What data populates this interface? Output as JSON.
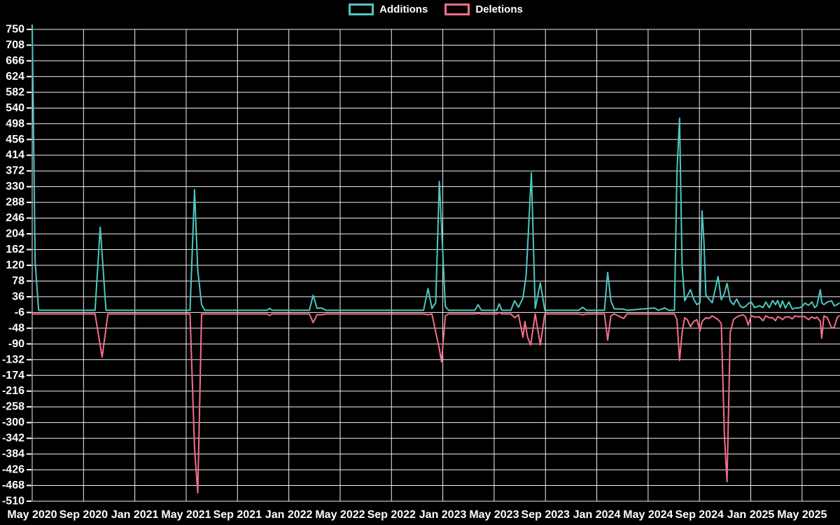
{
  "page": {
    "background": "#000000",
    "text_color": "#ffffff",
    "grid_color": "#f2f2f2"
  },
  "legend": {
    "items": [
      {
        "label": "Additions",
        "color": "#4DC7C0"
      },
      {
        "label": "Deletions",
        "color": "#F56E8C"
      }
    ]
  },
  "chart_data": {
    "type": "line",
    "title": "",
    "xlabel": "",
    "ylabel": "",
    "grid": true,
    "legend_position": "top-center",
    "x_axis": {
      "unit": "months since May 2020 (weekly data)",
      "range_months": [
        0,
        62.9
      ],
      "tick_step_months": 4,
      "tick_labels": [
        "May 2020",
        "Sep 2020",
        "Jan 2021",
        "May 2021",
        "Sep 2021",
        "Jan 2022",
        "May 2022",
        "Sep 2022",
        "Jan 2023",
        "May 2023",
        "Sep 2023",
        "Jan 2024",
        "May 2024",
        "Sep 2024",
        "Jan 2025",
        "May 2025"
      ]
    },
    "y_axis": {
      "range": [
        -510,
        750
      ],
      "ticks": [
        750,
        708,
        666,
        624,
        582,
        540,
        498,
        456,
        414,
        372,
        330,
        288,
        246,
        204,
        162,
        120,
        78,
        36,
        -6,
        -48,
        -90,
        -132,
        -174,
        -216,
        -258,
        -300,
        -342,
        -384,
        -426,
        -468,
        -510
      ]
    },
    "series": [
      {
        "name": "Additions",
        "color": "#4DC7C0",
        "line_width": 2,
        "points": [
          [
            0,
            762
          ],
          [
            0.23,
            130
          ],
          [
            0.5,
            0
          ],
          [
            4.9,
            0
          ],
          [
            5.3,
            222
          ],
          [
            5.75,
            0
          ],
          [
            12.3,
            0
          ],
          [
            12.65,
            322
          ],
          [
            12.9,
            107
          ],
          [
            13.2,
            15
          ],
          [
            13.45,
            0
          ],
          [
            18.3,
            0
          ],
          [
            18.5,
            5
          ],
          [
            18.7,
            0
          ],
          [
            21.6,
            0
          ],
          [
            21.9,
            40
          ],
          [
            22.2,
            5
          ],
          [
            22.55,
            6
          ],
          [
            22.9,
            0
          ],
          [
            30.5,
            0
          ],
          [
            30.85,
            58
          ],
          [
            31.15,
            5
          ],
          [
            31.45,
            20
          ],
          [
            31.73,
            344
          ],
          [
            31.9,
            227
          ],
          [
            32.2,
            10
          ],
          [
            32.45,
            0
          ],
          [
            34.5,
            0
          ],
          [
            34.75,
            15
          ],
          [
            35.0,
            0
          ],
          [
            36.2,
            0
          ],
          [
            36.4,
            17
          ],
          [
            36.6,
            0
          ],
          [
            37.3,
            0
          ],
          [
            37.6,
            25
          ],
          [
            37.9,
            8
          ],
          [
            38.25,
            33
          ],
          [
            38.5,
            94
          ],
          [
            38.9,
            367
          ],
          [
            39.2,
            5
          ],
          [
            39.6,
            73
          ],
          [
            39.95,
            0
          ],
          [
            42.6,
            0
          ],
          [
            42.9,
            8
          ],
          [
            43.2,
            0
          ],
          [
            44.6,
            0
          ],
          [
            44.85,
            101
          ],
          [
            45.1,
            25
          ],
          [
            45.35,
            4
          ],
          [
            46.1,
            3
          ],
          [
            46.35,
            0
          ],
          [
            48.5,
            6
          ],
          [
            48.8,
            0
          ],
          [
            49.3,
            6
          ],
          [
            49.6,
            0
          ],
          [
            50.05,
            0
          ],
          [
            50.25,
            370
          ],
          [
            50.45,
            513
          ],
          [
            50.65,
            120
          ],
          [
            50.85,
            25
          ],
          [
            51.05,
            38
          ],
          [
            51.3,
            55
          ],
          [
            51.55,
            30
          ],
          [
            51.8,
            15
          ],
          [
            52.05,
            20
          ],
          [
            52.2,
            265
          ],
          [
            52.35,
            185
          ],
          [
            52.5,
            40
          ],
          [
            52.75,
            30
          ],
          [
            53.0,
            20
          ],
          [
            53.45,
            90
          ],
          [
            53.7,
            28
          ],
          [
            53.95,
            45
          ],
          [
            54.15,
            72
          ],
          [
            54.4,
            25
          ],
          [
            54.65,
            15
          ],
          [
            54.9,
            30
          ],
          [
            55.2,
            10
          ],
          [
            55.4,
            7
          ],
          [
            55.6,
            10
          ],
          [
            55.8,
            18
          ],
          [
            56.03,
            22
          ],
          [
            56.3,
            7
          ],
          [
            56.68,
            12
          ],
          [
            56.95,
            7
          ],
          [
            57.17,
            22
          ],
          [
            57.45,
            7
          ],
          [
            57.7,
            26
          ],
          [
            57.93,
            15
          ],
          [
            58.1,
            26
          ],
          [
            58.3,
            7
          ],
          [
            58.47,
            25
          ],
          [
            58.7,
            6
          ],
          [
            58.97,
            22
          ],
          [
            59.24,
            3
          ],
          [
            59.46,
            6
          ],
          [
            59.67,
            6
          ],
          [
            59.95,
            8
          ],
          [
            60.22,
            19
          ],
          [
            60.5,
            13
          ],
          [
            60.77,
            22
          ],
          [
            60.98,
            7
          ],
          [
            61.15,
            12
          ],
          [
            61.42,
            55
          ],
          [
            61.53,
            20
          ],
          [
            61.7,
            15
          ],
          [
            61.97,
            22
          ],
          [
            62.3,
            25
          ],
          [
            62.5,
            12
          ],
          [
            62.73,
            15
          ],
          [
            62.89,
            19
          ]
        ]
      },
      {
        "name": "Deletions",
        "color": "#F56E8C",
        "line_width": 2,
        "points": [
          [
            0,
            -10
          ],
          [
            0.23,
            -10
          ],
          [
            4.9,
            -10
          ],
          [
            5.45,
            -125
          ],
          [
            5.9,
            -10
          ],
          [
            12.3,
            -10
          ],
          [
            12.65,
            -368
          ],
          [
            12.9,
            -488
          ],
          [
            13.2,
            -10
          ],
          [
            18.3,
            -10
          ],
          [
            18.5,
            -14
          ],
          [
            18.7,
            -10
          ],
          [
            21.6,
            -10
          ],
          [
            21.9,
            -33
          ],
          [
            22.2,
            -12
          ],
          [
            22.55,
            -12
          ],
          [
            22.9,
            -10
          ],
          [
            30.5,
            -10
          ],
          [
            30.85,
            -12
          ],
          [
            31.15,
            -10
          ],
          [
            31.73,
            -103
          ],
          [
            31.9,
            -138
          ],
          [
            32.2,
            -15
          ],
          [
            32.45,
            -10
          ],
          [
            34.5,
            -10
          ],
          [
            34.75,
            -8
          ],
          [
            35.0,
            -10
          ],
          [
            36.2,
            -10
          ],
          [
            36.4,
            -6
          ],
          [
            36.6,
            -10
          ],
          [
            37.3,
            -10
          ],
          [
            37.6,
            -20
          ],
          [
            37.9,
            -12
          ],
          [
            38.25,
            -72
          ],
          [
            38.4,
            -30
          ],
          [
            38.6,
            -72
          ],
          [
            38.85,
            -93
          ],
          [
            39.2,
            -10
          ],
          [
            39.6,
            -93
          ],
          [
            39.95,
            -10
          ],
          [
            42.6,
            -10
          ],
          [
            42.9,
            -12
          ],
          [
            43.2,
            -10
          ],
          [
            44.6,
            -10
          ],
          [
            44.85,
            -80
          ],
          [
            45.1,
            -15
          ],
          [
            45.35,
            -10
          ],
          [
            46.1,
            -22
          ],
          [
            46.35,
            -10
          ],
          [
            50.05,
            -10
          ],
          [
            50.25,
            -25
          ],
          [
            50.45,
            -134
          ],
          [
            50.65,
            -60
          ],
          [
            50.85,
            -20
          ],
          [
            51.05,
            -25
          ],
          [
            51.3,
            -44
          ],
          [
            51.55,
            -30
          ],
          [
            51.8,
            -25
          ],
          [
            52.05,
            -55
          ],
          [
            52.2,
            -30
          ],
          [
            52.35,
            -25
          ],
          [
            52.5,
            -20
          ],
          [
            52.75,
            -22
          ],
          [
            53.0,
            -15
          ],
          [
            53.45,
            -25
          ],
          [
            53.7,
            -35
          ],
          [
            53.95,
            -335
          ],
          [
            54.15,
            -458
          ],
          [
            54.4,
            -60
          ],
          [
            54.65,
            -25
          ],
          [
            54.9,
            -18
          ],
          [
            55.2,
            -14
          ],
          [
            55.4,
            -12
          ],
          [
            55.6,
            -18
          ],
          [
            55.8,
            -40
          ],
          [
            56.03,
            -15
          ],
          [
            56.3,
            -18
          ],
          [
            56.68,
            -18
          ],
          [
            56.95,
            -28
          ],
          [
            57.17,
            -15
          ],
          [
            57.45,
            -20
          ],
          [
            57.7,
            -20
          ],
          [
            57.93,
            -28
          ],
          [
            58.1,
            -17
          ],
          [
            58.3,
            -20
          ],
          [
            58.47,
            -25
          ],
          [
            58.7,
            -18
          ],
          [
            58.97,
            -18
          ],
          [
            59.24,
            -23
          ],
          [
            59.46,
            -15
          ],
          [
            59.67,
            -17
          ],
          [
            59.95,
            -17
          ],
          [
            60.22,
            -17
          ],
          [
            60.5,
            -25
          ],
          [
            60.77,
            -18
          ],
          [
            60.98,
            -22
          ],
          [
            61.15,
            -18
          ],
          [
            61.42,
            -30
          ],
          [
            61.53,
            -75
          ],
          [
            61.7,
            -15
          ],
          [
            61.97,
            -20
          ],
          [
            62.3,
            -48
          ],
          [
            62.5,
            -45
          ],
          [
            62.73,
            -20
          ],
          [
            62.89,
            -15
          ]
        ]
      }
    ]
  }
}
